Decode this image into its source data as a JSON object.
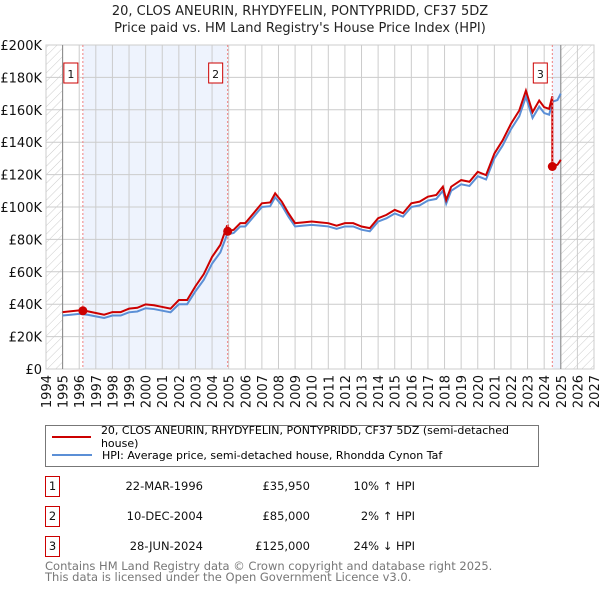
{
  "chart_data": {
    "type": "line",
    "title": "20, CLOS ANEURIN, RHYDYFELIN, PONTYPRIDD, CF37 5DZ",
    "subtitle": "Price paid vs. HM Land Registry's House Price Index (HPI)",
    "xlim": [
      1994,
      2027
    ],
    "ylim": [
      0,
      200000
    ],
    "x_ticks": [
      "1994",
      "1995",
      "1996",
      "1997",
      "1998",
      "1999",
      "2000",
      "2001",
      "2002",
      "2003",
      "2004",
      "2005",
      "2006",
      "2007",
      "2008",
      "2009",
      "2010",
      "2011",
      "2012",
      "2013",
      "2014",
      "2015",
      "2016",
      "2017",
      "2018",
      "2019",
      "2020",
      "2021",
      "2022",
      "2023",
      "2024",
      "2025",
      "2026",
      "2027"
    ],
    "y_ticks": [
      {
        "v": 0,
        "label": "£0"
      },
      {
        "v": 20000,
        "label": "£20K"
      },
      {
        "v": 40000,
        "label": "£40K"
      },
      {
        "v": 60000,
        "label": "£60K"
      },
      {
        "v": 80000,
        "label": "£80K"
      },
      {
        "v": 100000,
        "label": "£100K"
      },
      {
        "v": 120000,
        "label": "£120K"
      },
      {
        "v": 140000,
        "label": "£140K"
      },
      {
        "v": 160000,
        "label": "£160K"
      },
      {
        "v": 180000,
        "label": "£180K"
      },
      {
        "v": 200000,
        "label": "£200K"
      }
    ],
    "grid": true,
    "series": [
      {
        "name": "20, CLOS ANEURIN, RHYDYFELIN, PONTYPRIDD, CF37 5DZ (semi-detached house)",
        "color": "#cc0000"
      },
      {
        "name": "HPI: Average price, semi-detached house, Rhondda Cynon Taf",
        "color": "#5b8fd6",
        "x": [
          1995,
          1995.5,
          1996,
          1996.5,
          1997,
          1997.5,
          1998,
          1998.5,
          1999,
          1999.5,
          2000,
          2000.5,
          2001,
          2001.5,
          2002,
          2002.5,
          2003,
          2003.5,
          2004,
          2004.5,
          2004.9,
          2005.3,
          2005.7,
          2006,
          2006.5,
          2007,
          2007.5,
          2007.8,
          2008.2,
          2008.6,
          2009,
          2009.5,
          2010,
          2010.5,
          2011,
          2011.5,
          2012,
          2012.5,
          2013,
          2013.5,
          2014,
          2014.5,
          2015,
          2015.5,
          2016,
          2016.5,
          2017,
          2017.5,
          2017.9,
          2018.1,
          2018.4,
          2019,
          2019.5,
          2020,
          2020.5,
          2021,
          2021.5,
          2022,
          2022.5,
          2022.9,
          2023.3,
          2023.7,
          2024,
          2024.3,
          2024.5,
          2024.8,
          2025
        ],
        "y": [
          33000,
          33500,
          34000,
          33500,
          32500,
          31500,
          33000,
          33000,
          35000,
          35500,
          37500,
          37000,
          36000,
          35000,
          40000,
          40000,
          48000,
          55000,
          65000,
          72000,
          83000,
          84000,
          88000,
          88000,
          94000,
          100000,
          100500,
          106000,
          101000,
          94000,
          88000,
          88500,
          89000,
          88500,
          88000,
          86500,
          88000,
          88000,
          86000,
          85000,
          91000,
          93000,
          96000,
          94000,
          100000,
          101000,
          104000,
          105000,
          110000,
          102000,
          110000,
          114000,
          113000,
          119000,
          117000,
          130000,
          138000,
          148000,
          156000,
          168000,
          155000,
          162000,
          158000,
          157000,
          165000,
          166000,
          170000
        ]
      }
    ],
    "sales": [
      {
        "n": "1",
        "x": 1996.22,
        "date": "22-MAR-1996",
        "price": "£35,950",
        "value": 35950,
        "hpi": "10% ↑ HPI"
      },
      {
        "n": "2",
        "x": 2004.94,
        "date": "10-DEC-2004",
        "price": "£85,000",
        "value": 85000,
        "hpi": "2% ↑ HPI"
      },
      {
        "n": "3",
        "x": 2024.49,
        "date": "28-JUN-2024",
        "price": "£125,000",
        "value": 125000,
        "hpi": "24% ↓ HPI"
      }
    ],
    "legend_placement": "below"
  },
  "footer": {
    "line1": "Contains HM Land Registry data © Crown copyright and database right 2025.",
    "line2": "This data is licensed under the Open Government Licence v3.0."
  }
}
